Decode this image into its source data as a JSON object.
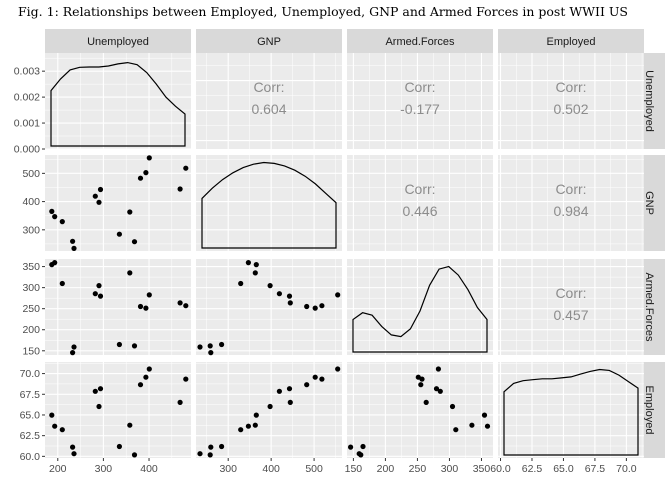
{
  "title": "Fig. 1: Relationships between Employed, Unemployed, GNP and Armed Forces in post WWII US",
  "chart_data": {
    "type": "scatter-matrix",
    "variables": [
      "Unemployed",
      "GNP",
      "Armed.Forces",
      "Employed"
    ],
    "corr_label": "Corr:",
    "correlations": [
      {
        "row": "Unemployed",
        "col": "GNP",
        "value": "0.604"
      },
      {
        "row": "Unemployed",
        "col": "Armed.Forces",
        "value": "-0.177"
      },
      {
        "row": "Unemployed",
        "col": "Employed",
        "value": "0.502"
      },
      {
        "row": "GNP",
        "col": "Armed.Forces",
        "value": "0.446"
      },
      {
        "row": "GNP",
        "col": "Employed",
        "value": "0.984"
      },
      {
        "row": "Armed.Forces",
        "col": "Employed",
        "value": "0.457"
      }
    ],
    "axes": {
      "Unemployed": {
        "lim": [
          172,
          492
        ],
        "ticks": [
          200,
          300,
          400
        ]
      },
      "GNP": {
        "lim": [
          225,
          565
        ],
        "ticks": [
          300,
          400,
          500
        ]
      },
      "Armed.Forces": {
        "lim": [
          140,
          368
        ],
        "ticks": [
          150,
          200,
          250,
          300,
          350
        ]
      },
      "Employed": {
        "lim": [
          59.8,
          71.4
        ],
        "ticks": [
          "60.0",
          "62.5",
          "65.0",
          "67.5",
          "70.0"
        ]
      }
    },
    "density_axis": {
      "lim": [
        0,
        0.0037
      ],
      "ticks": [
        "0.000",
        "0.001",
        "0.002",
        "0.003"
      ]
    },
    "observations": {
      "Unemployed": [
        235.6,
        232.5,
        368.2,
        335.1,
        209.9,
        193.2,
        187.0,
        357.8,
        290.4,
        282.2,
        293.6,
        468.1,
        381.3,
        393.1,
        480.6,
        400.7
      ],
      "GNP": [
        234.3,
        259.4,
        258.1,
        284.6,
        329.0,
        347.0,
        365.4,
        363.1,
        397.5,
        419.2,
        442.8,
        444.5,
        482.7,
        502.6,
        518.2,
        554.9
      ],
      "Armed.Forces": [
        159.0,
        145.6,
        161.6,
        165.0,
        309.9,
        359.4,
        354.7,
        335.0,
        304.8,
        285.7,
        279.8,
        263.7,
        255.2,
        251.4,
        257.2,
        282.7
      ],
      "Employed": [
        60.323,
        61.122,
        60.171,
        61.187,
        63.221,
        63.639,
        64.989,
        63.761,
        66.019,
        67.857,
        68.169,
        66.513,
        68.655,
        69.564,
        69.331,
        70.551
      ]
    },
    "densities": {
      "Unemployed": [
        0.00225,
        0.0027,
        0.00305,
        0.00315,
        0.00316,
        0.00316,
        0.0032,
        0.00328,
        0.00333,
        0.00325,
        0.00295,
        0.0025,
        0.002,
        0.00165,
        0.00135
      ],
      "GNP": [
        0.58,
        0.7,
        0.8,
        0.88,
        0.94,
        0.98,
        1.0,
        0.99,
        0.96,
        0.91,
        0.84,
        0.75,
        0.64,
        0.53
      ],
      "Armed.Forces": [
        0.38,
        0.46,
        0.43,
        0.3,
        0.2,
        0.18,
        0.27,
        0.48,
        0.78,
        0.97,
        1.0,
        0.9,
        0.73,
        0.52,
        0.38
      ],
      "Employed": [
        0.68,
        0.77,
        0.8,
        0.81,
        0.82,
        0.82,
        0.83,
        0.84,
        0.87,
        0.9,
        0.92,
        0.91,
        0.86,
        0.79,
        0.72
      ]
    }
  }
}
